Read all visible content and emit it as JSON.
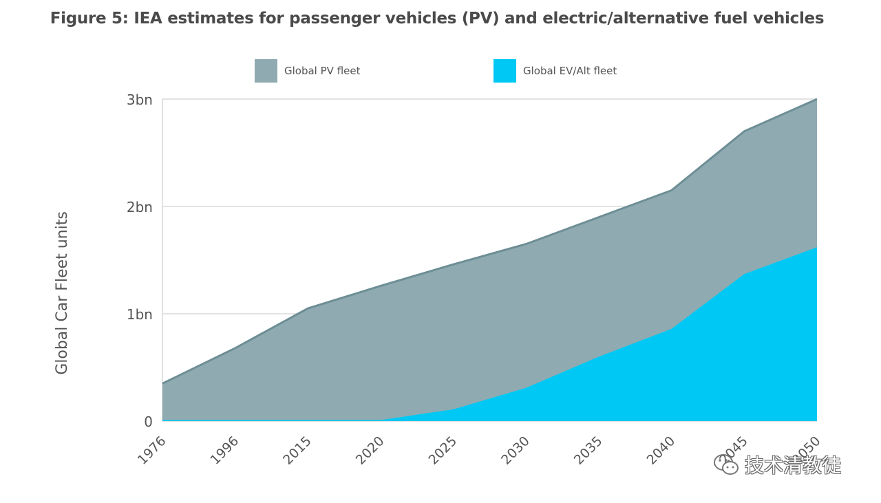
{
  "figure": {
    "title": "Figure 5: IEA estimates for passenger vehicles (PV) and electric/alternative fuel vehicles"
  },
  "watermark": {
    "text": "技术清教徒",
    "icon": "wechat-icon"
  },
  "colors": {
    "pv_fill": "#8fabb1",
    "pv_line": "#6d8e95",
    "ev_fill": "#00c8f4",
    "grid": "#d9d9d9"
  },
  "chart_data": {
    "type": "area",
    "categories": [
      "1976",
      "1996",
      "2015",
      "2020",
      "2025",
      "2030",
      "2035",
      "2040",
      "2045",
      "2050"
    ],
    "series": [
      {
        "name": "Global PV fleet",
        "values": [
          0.35,
          0.68,
          1.05,
          1.26,
          1.46,
          1.65,
          1.9,
          2.15,
          2.7,
          3.0
        ]
      },
      {
        "name": "Global EV/Alt fleet",
        "values": [
          0.01,
          0.01,
          0.01,
          0.01,
          0.11,
          0.31,
          0.6,
          0.86,
          1.37,
          1.62
        ]
      }
    ],
    "xlabel": "",
    "ylabel": "Global Car Fleet units",
    "y_ticks": [
      "0",
      "1bn",
      "2bn",
      "3bn"
    ],
    "ylim": [
      0,
      3
    ],
    "grid": true,
    "legend_position": "top"
  }
}
